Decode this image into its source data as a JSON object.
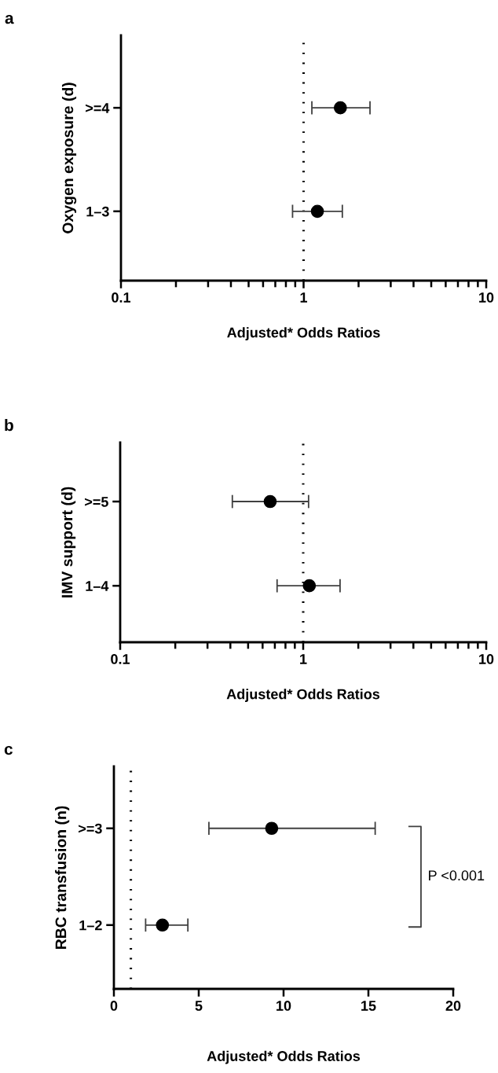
{
  "chart_data": [
    {
      "type": "scatter",
      "title": "a",
      "orientation": "horizontal",
      "categories": [
        ">=4",
        "1–3"
      ],
      "ylabel": "Oxygen exposure (d)",
      "xlabel": "Adjusted* Odds Ratios",
      "series": [
        {
          "color": "#000000",
          "values": [
            1.59,
            1.19
          ],
          "errors": [
            [
              1.11,
              2.31
            ],
            [
              0.87,
              1.63
            ]
          ]
        }
      ],
      "log": "x",
      "xlim": [
        0.1,
        10
      ],
      "xticks": [
        0.1,
        1,
        10
      ],
      "marker": "circle",
      "grid": false,
      "ref_lines": [
        {
          "axis": "x",
          "value": 1,
          "line_style": "dotted",
          "color": "#000000"
        }
      ]
    },
    {
      "type": "scatter",
      "title": "b",
      "orientation": "horizontal",
      "categories": [
        ">=5",
        "1–4"
      ],
      "ylabel": "IMV support (d)",
      "xlabel": "Adjusted* Odds Ratios",
      "series": [
        {
          "color": "#000000",
          "values": [
            0.66,
            1.08
          ],
          "errors": [
            [
              0.41,
              1.07
            ],
            [
              0.72,
              1.59
            ]
          ]
        }
      ],
      "log": "x",
      "xlim": [
        0.1,
        10
      ],
      "xticks": [
        0.1,
        1,
        10
      ],
      "marker": "circle",
      "grid": false,
      "ref_lines": [
        {
          "axis": "x",
          "value": 1,
          "line_style": "dotted",
          "color": "#000000"
        }
      ]
    },
    {
      "type": "scatter",
      "title": "c",
      "orientation": "horizontal",
      "categories": [
        ">=3",
        "1–2"
      ],
      "ylabel": "RBC transfusion (n)",
      "xlabel": "Adjusted* Odds Ratios",
      "series": [
        {
          "color": "#000000",
          "values": [
            9.3,
            2.86
          ],
          "errors": [
            [
              5.6,
              15.4
            ],
            [
              1.87,
              4.36
            ]
          ]
        }
      ],
      "xlim": [
        0,
        20
      ],
      "xticks": [
        0,
        5,
        10,
        15,
        20
      ],
      "marker": "circle",
      "grid": false,
      "ref_lines": [
        {
          "axis": "x",
          "value": 1,
          "line_style": "dotted",
          "color": "#000000"
        }
      ],
      "annotations": [
        "P <0.001"
      ]
    }
  ]
}
